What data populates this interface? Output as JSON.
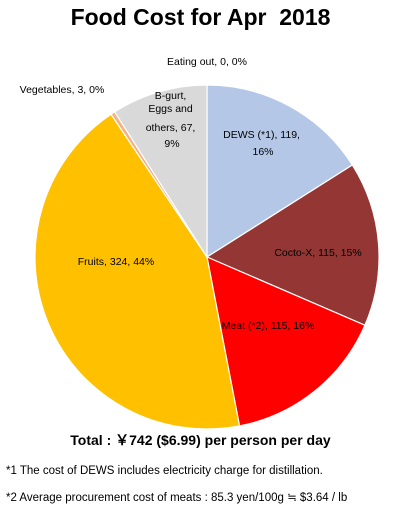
{
  "chart_data": {
    "type": "pie",
    "title": "Food Cost for Apr  2018",
    "slices": [
      {
        "label": "DEWS (*1), 119, 16%",
        "value": 119,
        "percent": 16,
        "color": "#B4C7E7"
      },
      {
        "label": "Cocto-X, 115, 15%",
        "value": 115,
        "percent": 15,
        "color": "#943634"
      },
      {
        "label": "Meat (*2), 115, 16%",
        "value": 115,
        "percent": 16,
        "color": "#FF0000"
      },
      {
        "label": "Fruits, 324, 44%",
        "value": 324,
        "percent": 44,
        "color": "#FFC000"
      },
      {
        "label": "Vegetables, 3, 0%",
        "value": 3,
        "percent": 0,
        "color": "#F4B183"
      },
      {
        "label": "B-gurt, Eggs and others, 67, 9%",
        "value": 67,
        "percent": 9,
        "color": "#D9D9D9"
      },
      {
        "label": "Eating out, 0, 0%",
        "value": 0,
        "percent": 0,
        "color": "#A5A5A5"
      }
    ]
  },
  "footer": {
    "total": "Total : ￥742 ($6.99) per person per day",
    "note1": "*1 The cost of DEWS includes electricity charge for distillation.",
    "note2": "*2 Average procurement cost of meats : 85.3 yen/100g ≒ $3.64 / lb"
  }
}
